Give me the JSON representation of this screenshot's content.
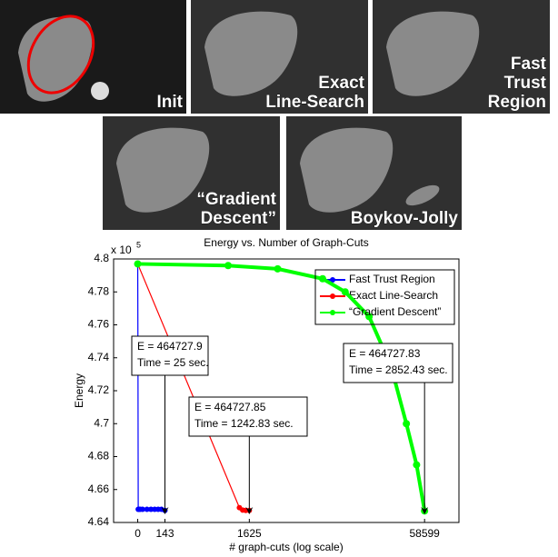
{
  "panels": [
    {
      "label": [
        "Init"
      ]
    },
    {
      "label": [
        "Exact",
        "Line-Search"
      ]
    },
    {
      "label": [
        "Fast",
        "Trust",
        "Region"
      ]
    },
    {
      "label": [
        "“Gradient",
        "Descent”"
      ]
    },
    {
      "label": [
        "Boykov-Jolly"
      ]
    }
  ],
  "chart_data": {
    "type": "line",
    "title": "Energy vs. Number of Graph-Cuts",
    "x_label": "# graph-cuts (log scale)",
    "y_label": "Energy",
    "y_multiplier": {
      "base": "x 10",
      "exponent": "5"
    },
    "xscale": "log",
    "xlim": [
      -76,
      116000
    ],
    "xticks": [
      0,
      143,
      1625,
      58599
    ],
    "ylim": [
      4.64,
      4.8
    ],
    "yticks": [
      4.64,
      4.66,
      4.68,
      4.7,
      4.72,
      4.74,
      4.76,
      4.78,
      4.8
    ],
    "legend": "upper right",
    "series": [
      {
        "name": "Fast Trust Region",
        "color": "#0000ff",
        "x": [
          0,
          1,
          2,
          5,
          10,
          20,
          40,
          60,
          80,
          100,
          120,
          143
        ],
        "values": [
          4.797,
          4.737,
          4.648,
          4.648,
          4.648,
          4.648,
          4.648,
          4.648,
          4.648,
          4.648,
          4.648,
          4.6473
        ]
      },
      {
        "name": "Exact Line-Search",
        "color": "#ff0000",
        "x": [
          0,
          1300,
          1400,
          1500,
          1625
        ],
        "values": [
          4.797,
          4.649,
          4.6475,
          4.6473,
          4.6473
        ]
      },
      {
        "name": "“Gradient Descent”",
        "color": "#00ff00",
        "x": [
          0,
          1000,
          3000,
          7600,
          12000,
          19400,
          30000,
          40800,
          50000,
          58599
        ],
        "values": [
          4.797,
          4.796,
          4.794,
          4.788,
          4.78,
          4.765,
          4.735,
          4.7,
          4.675,
          4.647
        ]
      }
    ],
    "annotations": [
      {
        "lines": [
          "E = 464727.9",
          "Time = 25 sec."
        ]
      },
      {
        "lines": [
          "E = 464727.85",
          "Time = 1242.83 sec."
        ]
      },
      {
        "lines": [
          "E = 464727.83",
          "Time = 2852.43 sec."
        ]
      }
    ]
  }
}
